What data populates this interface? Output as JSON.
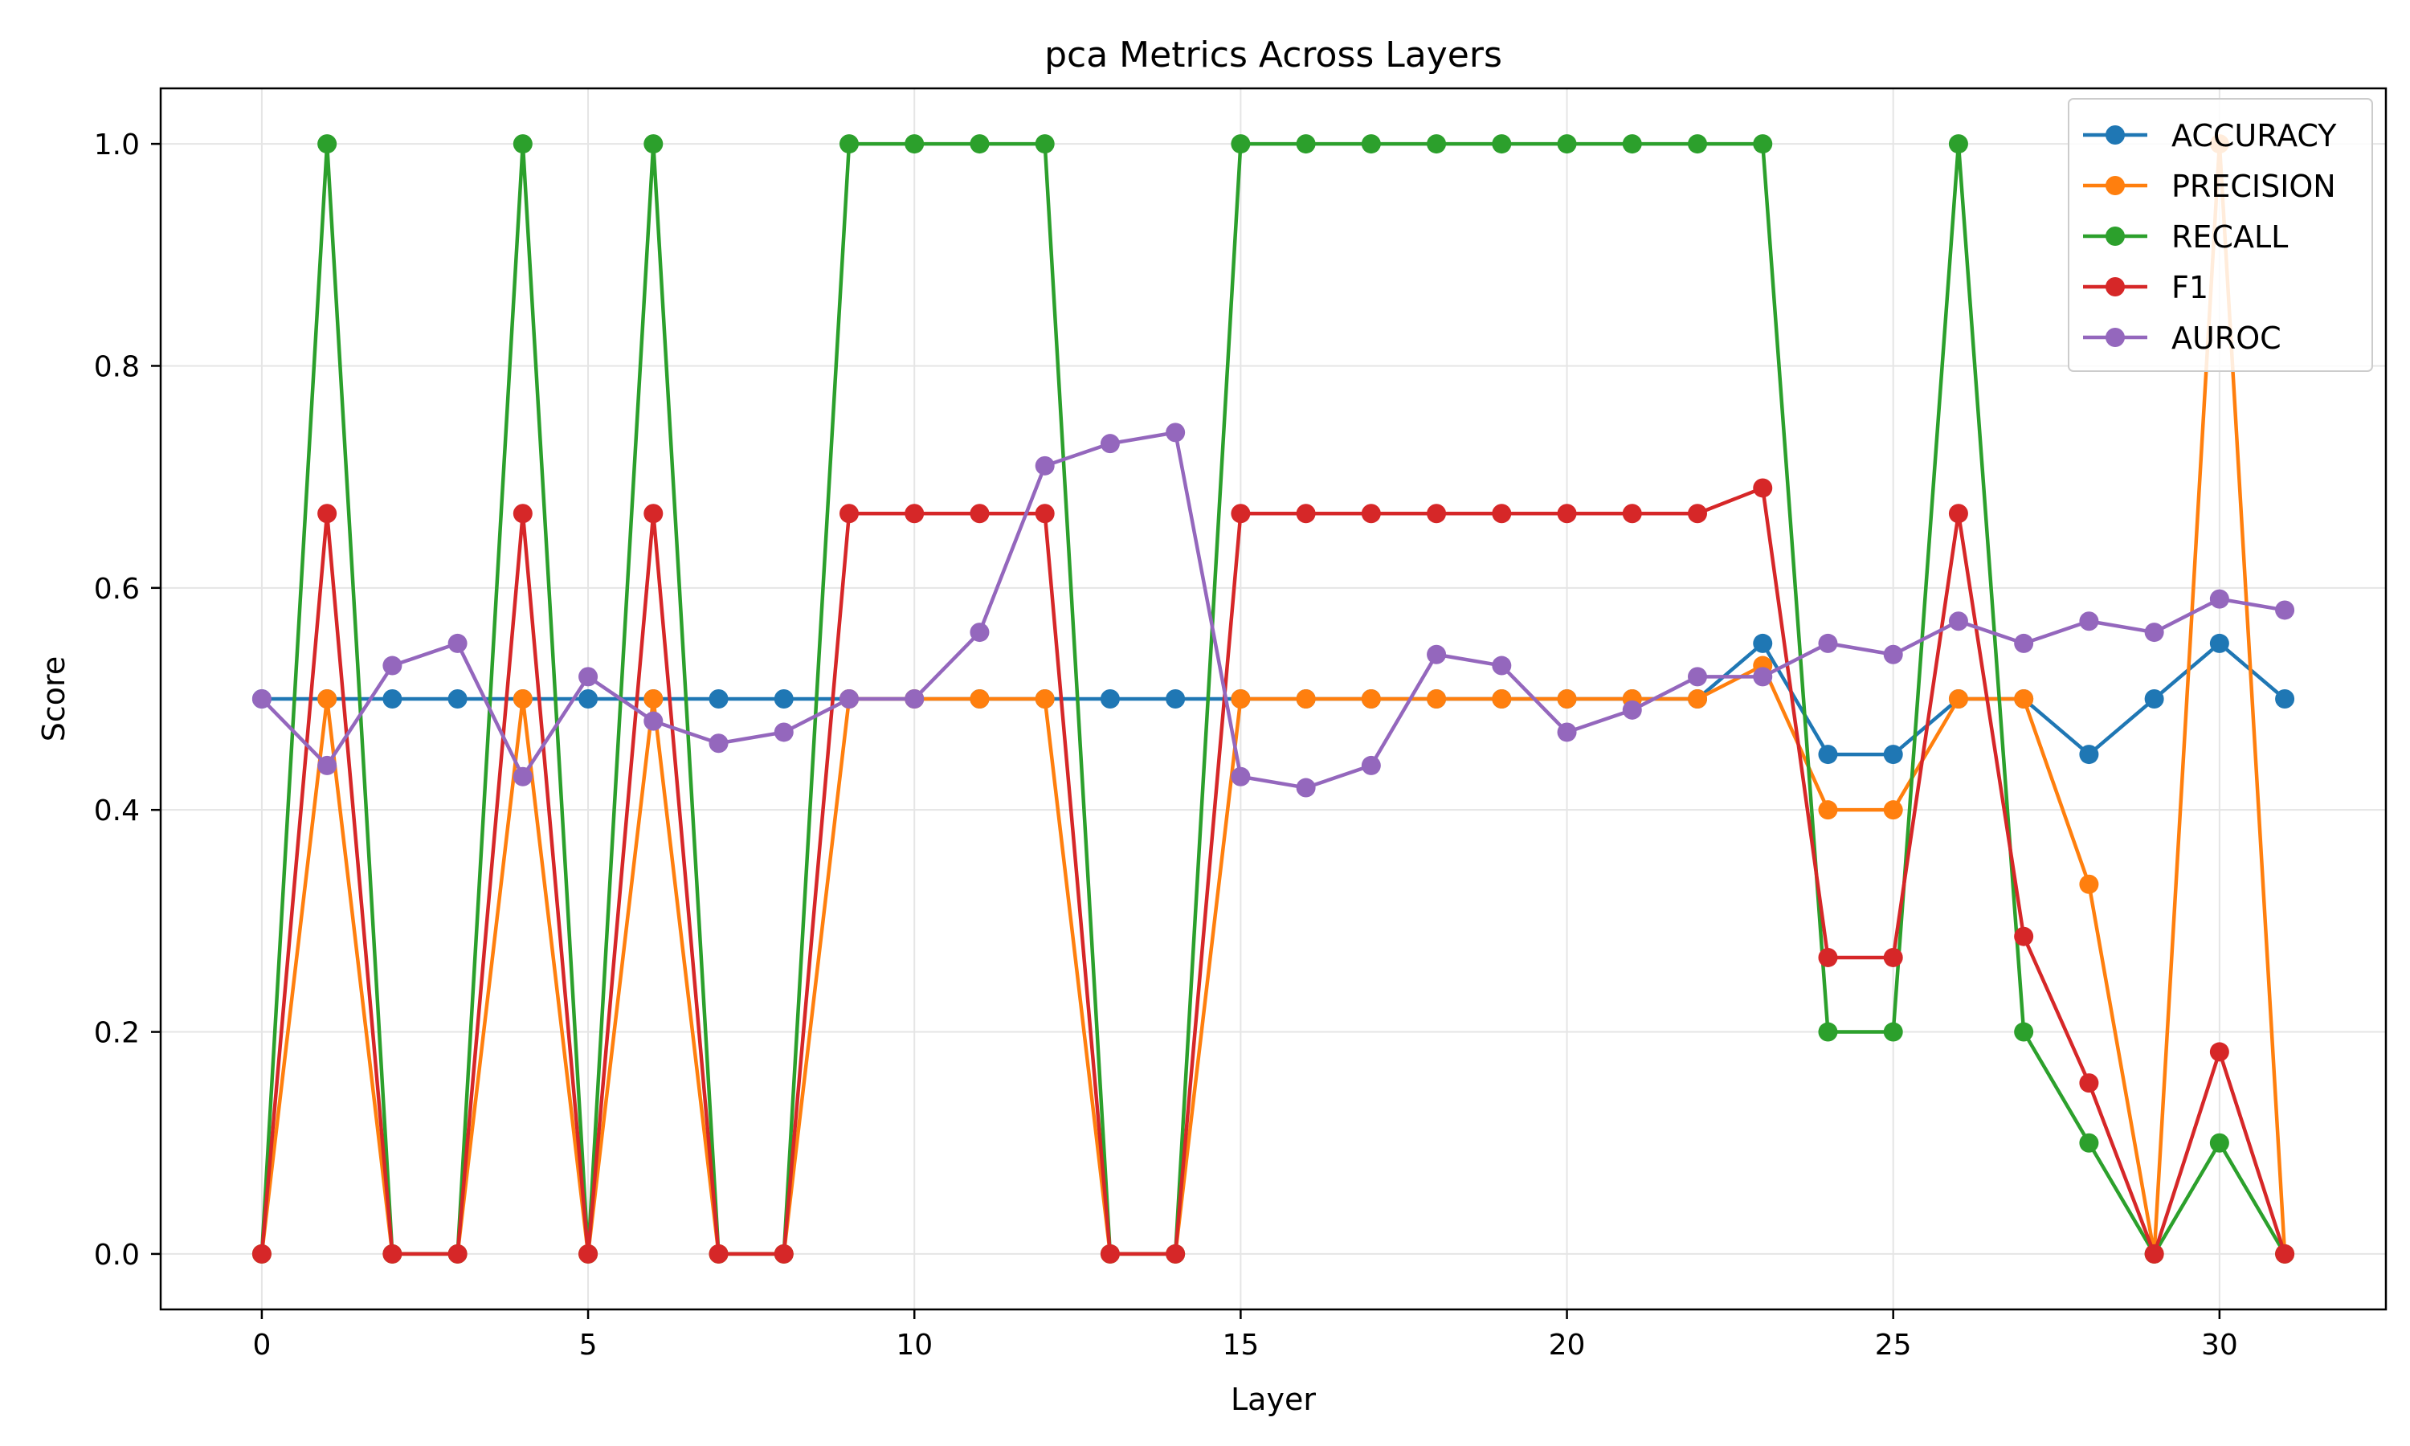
{
  "chart_data": {
    "type": "line",
    "title": "pca Metrics Across Layers",
    "xlabel": "Layer",
    "ylabel": "Score",
    "xlim": [
      -1.55,
      32.55
    ],
    "ylim": [
      -0.05,
      1.05
    ],
    "xticks": [
      0,
      5,
      10,
      15,
      20,
      25,
      30
    ],
    "yticks": [
      0.0,
      0.2,
      0.4,
      0.6,
      0.8,
      1.0
    ],
    "grid": true,
    "legend_position": "top-right",
    "x": [
      0,
      1,
      2,
      3,
      4,
      5,
      6,
      7,
      8,
      9,
      10,
      11,
      12,
      13,
      14,
      15,
      16,
      17,
      18,
      19,
      20,
      21,
      22,
      23,
      24,
      25,
      26,
      27,
      28,
      29,
      30,
      31
    ],
    "series": [
      {
        "name": "ACCURACY",
        "color": "#1f77b4",
        "values": [
          0.5,
          0.5,
          0.5,
          0.5,
          0.5,
          0.5,
          0.5,
          0.5,
          0.5,
          0.5,
          0.5,
          0.5,
          0.5,
          0.5,
          0.5,
          0.5,
          0.5,
          0.5,
          0.5,
          0.5,
          0.5,
          0.5,
          0.5,
          0.55,
          0.45,
          0.45,
          0.5,
          0.5,
          0.45,
          0.5,
          0.55,
          0.5
        ]
      },
      {
        "name": "PRECISION",
        "color": "#ff7f0e",
        "values": [
          0.0,
          0.5,
          0.0,
          0.0,
          0.5,
          0.0,
          0.5,
          0.0,
          0.0,
          0.5,
          0.5,
          0.5,
          0.5,
          0.0,
          0.0,
          0.5,
          0.5,
          0.5,
          0.5,
          0.5,
          0.5,
          0.5,
          0.5,
          0.53,
          0.4,
          0.4,
          0.5,
          0.5,
          0.333,
          0.0,
          1.0,
          0.0
        ]
      },
      {
        "name": "RECALL",
        "color": "#2ca02c",
        "values": [
          0.0,
          1.0,
          0.0,
          0.0,
          1.0,
          0.0,
          1.0,
          0.0,
          0.0,
          1.0,
          1.0,
          1.0,
          1.0,
          0.0,
          0.0,
          1.0,
          1.0,
          1.0,
          1.0,
          1.0,
          1.0,
          1.0,
          1.0,
          1.0,
          0.2,
          0.2,
          1.0,
          0.2,
          0.1,
          0.0,
          0.1,
          0.0
        ]
      },
      {
        "name": "F1",
        "color": "#d62728",
        "values": [
          0.0,
          0.667,
          0.0,
          0.0,
          0.667,
          0.0,
          0.667,
          0.0,
          0.0,
          0.667,
          0.667,
          0.667,
          0.667,
          0.0,
          0.0,
          0.667,
          0.667,
          0.667,
          0.667,
          0.667,
          0.667,
          0.667,
          0.667,
          0.69,
          0.267,
          0.267,
          0.667,
          0.286,
          0.154,
          0.0,
          0.182,
          0.0
        ]
      },
      {
        "name": "AUROC",
        "color": "#9467bd",
        "values": [
          0.5,
          0.44,
          0.53,
          0.55,
          0.43,
          0.52,
          0.48,
          0.46,
          0.47,
          0.5,
          0.5,
          0.56,
          0.71,
          0.73,
          0.74,
          0.43,
          0.42,
          0.44,
          0.54,
          0.53,
          0.47,
          0.49,
          0.52,
          0.52,
          0.55,
          0.54,
          0.57,
          0.55,
          0.57,
          0.56,
          0.59,
          0.58
        ]
      }
    ]
  }
}
